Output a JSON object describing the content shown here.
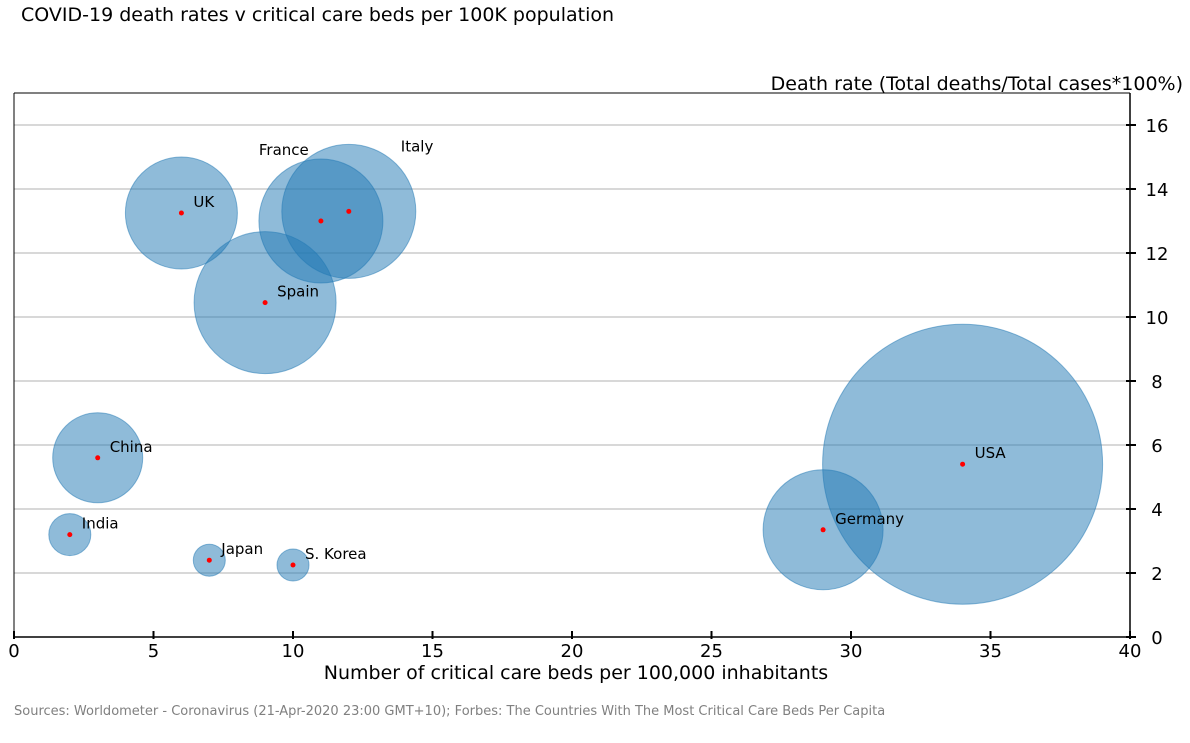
{
  "chart_data": {
    "type": "scatter",
    "title": "COVID-19 death rates v critical care beds per 100K population",
    "xlabel": "Number of critical care beds per 100,000 inhabitants",
    "ylabel": "Death rate (Total deaths/Total cases*100%)",
    "source": "Sources: Worldometer - Coronavirus (21-Apr-2020 23:00 GMT+10); Forbes: The Countries With The Most Critical Care Beds Per Capita",
    "xlim": [
      0,
      40
    ],
    "ylim": [
      0,
      17
    ],
    "xticks": [
      0,
      5,
      10,
      15,
      20,
      25,
      30,
      35,
      40
    ],
    "yticks": [
      0,
      2,
      4,
      6,
      8,
      10,
      12,
      14,
      16
    ],
    "grid": "horizontal",
    "bubble_color": "#1f77b4",
    "point_color": "#ff0000",
    "points": [
      {
        "label": "USA",
        "x": 34,
        "y": 5.4,
        "size": 140
      },
      {
        "label": "Italy",
        "x": 12,
        "y": 13.3,
        "size": 67
      },
      {
        "label": "France",
        "x": 11,
        "y": 13.0,
        "size": 62
      },
      {
        "label": "Spain",
        "x": 9,
        "y": 10.45,
        "size": 71
      },
      {
        "label": "UK",
        "x": 6,
        "y": 13.25,
        "size": 56
      },
      {
        "label": "Germany",
        "x": 29,
        "y": 3.35,
        "size": 60
      },
      {
        "label": "China",
        "x": 3,
        "y": 5.6,
        "size": 45
      },
      {
        "label": "India",
        "x": 2,
        "y": 3.2,
        "size": 21
      },
      {
        "label": "Japan",
        "x": 7,
        "y": 2.4,
        "size": 16
      },
      {
        "label": "S. Korea",
        "x": 10,
        "y": 2.25,
        "size": 16
      }
    ]
  }
}
